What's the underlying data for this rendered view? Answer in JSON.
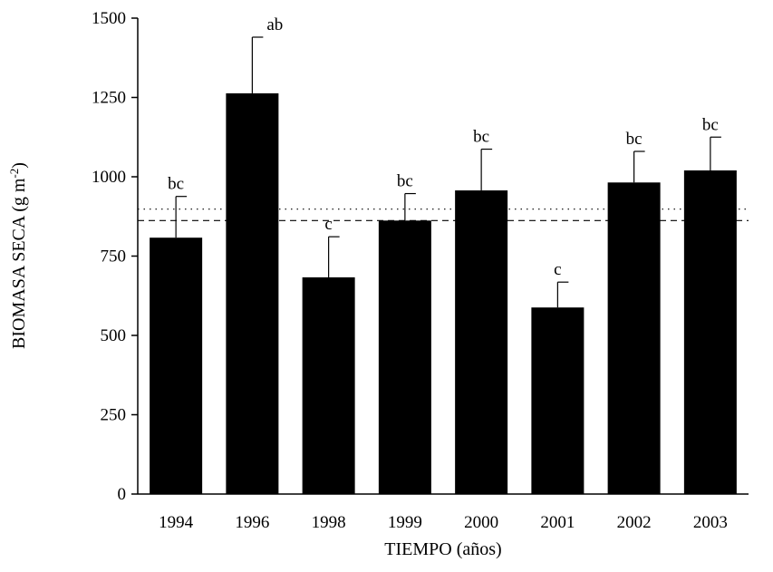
{
  "chart_data": {
    "type": "bar",
    "categories": [
      "1994",
      "1996",
      "1998",
      "1999",
      "2000",
      "2001",
      "2002",
      "2003"
    ],
    "values": [
      808,
      1263,
      683,
      862,
      957,
      588,
      982,
      1020
    ],
    "error": [
      130,
      177,
      128,
      85,
      130,
      80,
      98,
      105
    ],
    "annotations": [
      "bc",
      "ab",
      "c",
      "bc",
      "bc",
      "c",
      "bc",
      "bc"
    ],
    "ylim": [
      0,
      1500
    ],
    "yticks": [
      0,
      250,
      500,
      750,
      1000,
      1250,
      1500
    ],
    "xlabel": "TIEMPO (años)",
    "ylabel": {
      "main": "BIOMASA SECA (g m",
      "sup": "-2",
      "end": ")"
    },
    "reference_lines": [
      {
        "value": 862,
        "style": "dashed"
      },
      {
        "value": 898,
        "style": "dotted"
      }
    ],
    "grid": false,
    "colors": {
      "bar": "#000000",
      "axis": "#000000"
    }
  }
}
